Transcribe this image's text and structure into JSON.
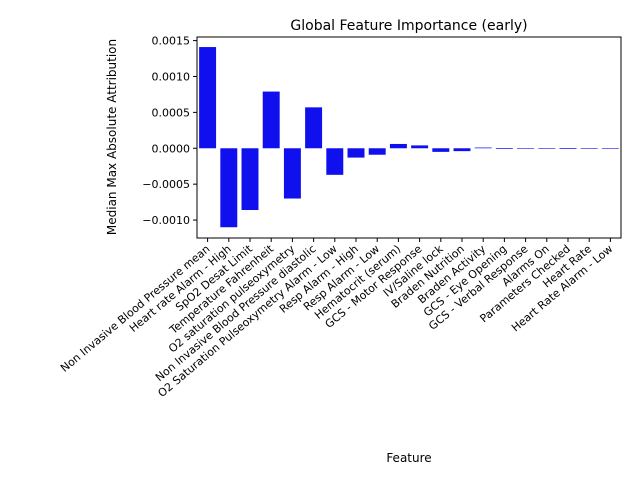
{
  "chart_data": {
    "type": "bar",
    "title": "Global Feature Importance (early)",
    "xlabel": "Feature",
    "ylabel": "Median Max Absolute Attribution",
    "ylim": [
      -0.00125,
      0.00155
    ],
    "yticks": [
      0.0015,
      0.001,
      0.0005,
      0.0,
      -0.0005,
      -0.001
    ],
    "ytick_labels": [
      "0.0015",
      "0.0010",
      "0.0005",
      "0.0000",
      "−0.0005",
      "−0.0010"
    ],
    "bar_color": "#1010ee",
    "grid": false,
    "categories": [
      "Non Invasive Blood Pressure mean",
      "Heart rate Alarm - High",
      "SpO2 Desat Limit",
      "Temperature Fahrenheit",
      "O2 saturation pulseoxymetry",
      "Non Invasive Blood Pressure diastolic",
      "O2 Saturation Pulseoxymetry Alarm - Low",
      "Resp Alarm - High",
      "Resp Alarm - Low",
      "Hematocrit (serum)",
      "GCS - Motor Response",
      "IV/Saline lock",
      "Braden Nutrition",
      "Braden Activity",
      "GCS - Eye Opening",
      "GCS - Verbal Response",
      "Alarms On",
      "Parameters Checked",
      "Heart Rate",
      "Heart Rate Alarm - Low"
    ],
    "values": [
      0.00141,
      -0.0011,
      -0.00086,
      0.00079,
      -0.0007,
      0.00057,
      -0.00037,
      -0.00013,
      -9e-05,
      6e-05,
      4e-05,
      -5e-05,
      -4e-05,
      1e-05,
      -1e-05,
      0.0,
      0.0,
      -1e-05,
      0.0,
      0.0
    ]
  }
}
